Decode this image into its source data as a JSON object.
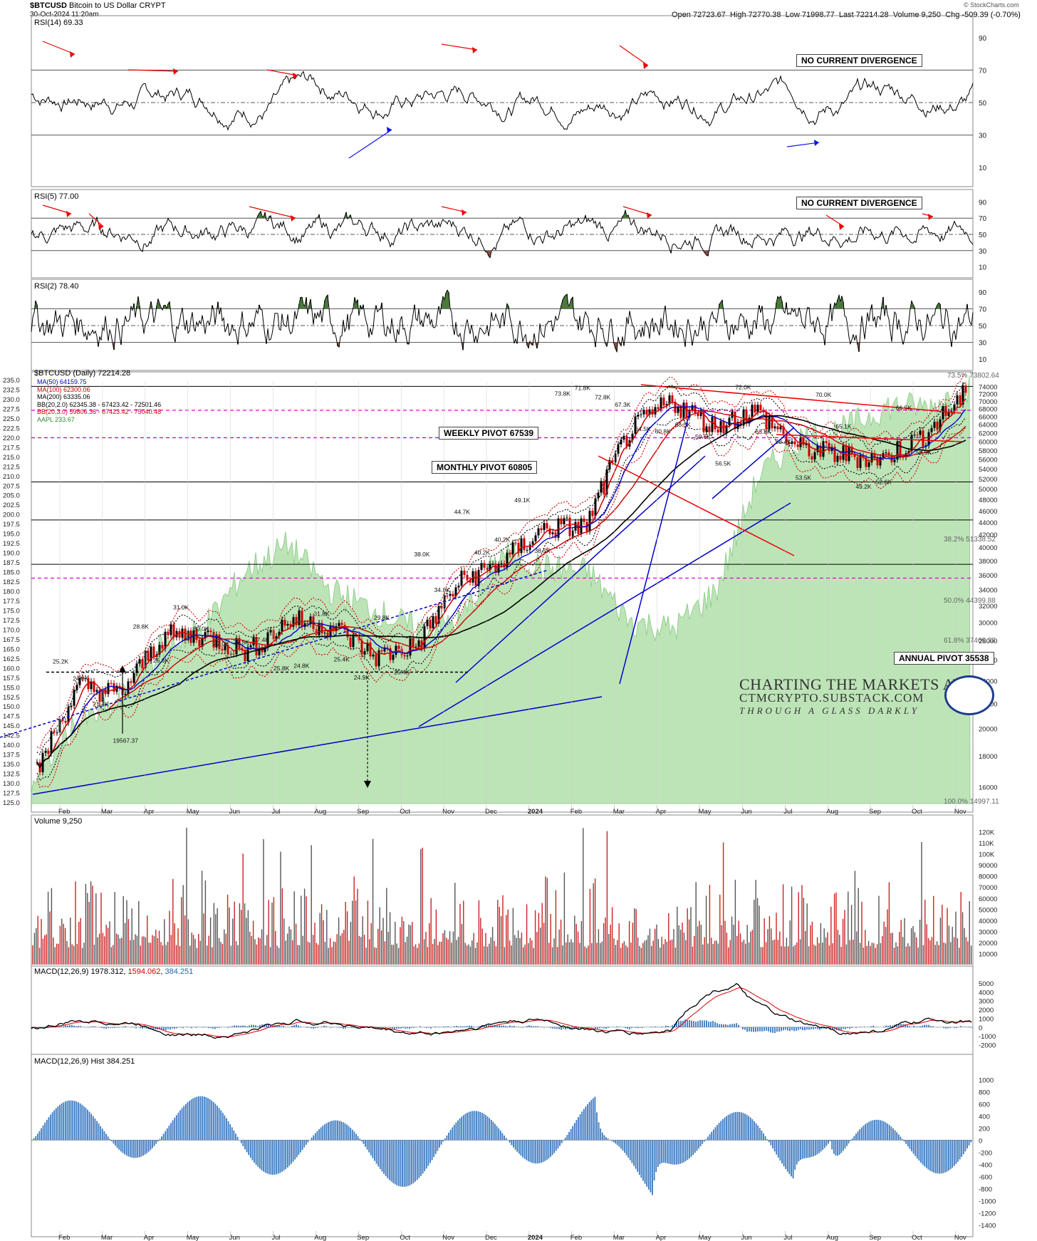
{
  "header": {
    "symbol": "$BTCUSD",
    "name": "Bitcoin to US Dollar",
    "exchange": "CRYPT",
    "date": "30-Oct-2024 11:20am",
    "open": "Open 72723.67",
    "high": "High 72770.38",
    "low": "Low 71998.77",
    "last": "Last 72214.28",
    "volume": "Volume 9,250",
    "chg": "Chg -509.39 (-0.70%)",
    "watermark": "© StockCharts.com"
  },
  "panels": {
    "rsi14": {
      "title": "RSI(14) 69.33",
      "note": "NO CURRENT DIVERGENCE",
      "ticks": [
        "90",
        "70",
        "50",
        "30",
        "10"
      ]
    },
    "rsi5": {
      "title": "RSI(5) 77.00",
      "note": "NO CURRENT DIVERGENCE",
      "ticks": [
        "90",
        "70",
        "50",
        "30",
        "10"
      ]
    },
    "rsi2": {
      "title": "RSI(2) 78.40",
      "ticks": [
        "90",
        "70",
        "50",
        "30",
        "10"
      ]
    },
    "volume": {
      "title": "Volume 9,250",
      "ticks": [
        "120K",
        "110K",
        "100K",
        "90000",
        "80000",
        "70000",
        "60000",
        "50000",
        "40000",
        "30000",
        "20000",
        "10000"
      ]
    },
    "macd": {
      "title": "MACD(12,26,9) 1978.312",
      "signal": "1594.062",
      "hist": "384.251",
      "ticks": [
        "5000",
        "4000",
        "3000",
        "2000",
        "1000",
        "0",
        "-1000",
        "-2000"
      ]
    },
    "macdhist": {
      "title": "MACD(12,26,9) Hist 384.251",
      "ticks": [
        "1000",
        "800",
        "600",
        "400",
        "200",
        "0",
        "-200",
        "-400",
        "-600",
        "-800",
        "-1000",
        "-1200",
        "-1400"
      ]
    }
  },
  "price_panel": {
    "title": "$BTCUSD (Daily) 72214.28",
    "legend": [
      {
        "text": "MA(50) 64159.75",
        "color": "#0000cc"
      },
      {
        "text": "MA(100) 62300.06",
        "color": "#cc0000"
      },
      {
        "text": "MA(200) 63335.06",
        "color": "#000000"
      },
      {
        "text": "BB(20,2.0) 62345.38 - 67423.42 - 72501.46",
        "color": "#000000"
      },
      {
        "text": "BB(20,3.0) 59806.36 - 67423.42 - 75040.48",
        "color": "#cc0000"
      },
      {
        "text": "AAPL 233.67",
        "color": "#2e8b2e"
      }
    ],
    "left_ticks": [
      "235.0",
      "232.5",
      "230.0",
      "227.5",
      "225.0",
      "222.5",
      "220.0",
      "217.5",
      "215.0",
      "212.5",
      "210.0",
      "207.5",
      "205.0",
      "202.5",
      "200.0",
      "197.5",
      "195.0",
      "192.5",
      "190.0",
      "187.5",
      "185.0",
      "182.5",
      "180.0",
      "177.5",
      "175.0",
      "172.5",
      "170.0",
      "167.5",
      "165.0",
      "162.5",
      "160.0",
      "157.5",
      "155.0",
      "152.5",
      "150.0",
      "147.5",
      "145.0",
      "142.5",
      "140.0",
      "137.5",
      "135.0",
      "132.5",
      "130.0",
      "127.5",
      "125.0"
    ],
    "right_ticks": [
      "74000",
      "72000",
      "70000",
      "68000",
      "66000",
      "64000",
      "62000",
      "60000",
      "58000",
      "56000",
      "54000",
      "52000",
      "50000",
      "48000",
      "46000",
      "44000",
      "42000",
      "40000",
      "38000",
      "36000",
      "34000",
      "32000",
      "30000",
      "28000",
      "26000",
      "24000",
      "22000",
      "20000",
      "18000",
      "16000"
    ],
    "pivots": [
      "WEEKLY PIVOT 67539",
      "MONTHLY PIVOT 60805",
      "ANNUAL PIVOT 35538"
    ],
    "fibs": [
      "73.5%",
      "38.2% 51338.52",
      "50.0% 44399.88",
      "61.8% 37460.38",
      "100.0% 14997.11"
    ],
    "top_fib": "73.5% 73802.64",
    "point_labels": [
      "25.2K",
      "24.8K",
      "21.4K",
      "19567.37",
      "28.8K",
      "26.6K",
      "31.0K",
      "30.0K",
      "27.0K",
      "28.5K",
      "27.4K",
      "25.8K",
      "24.8K",
      "31.8K",
      "25.4K",
      "24.9K",
      "29.8K",
      "25.4K",
      "38.0K",
      "34.8K",
      "44.7K",
      "40.2K",
      "40.2K",
      "49.1K",
      "38.5K",
      "73.8K",
      "71.8K",
      "72.8K",
      "67.3K",
      "64.5K",
      "60.8K",
      "65.5K",
      "59.6K",
      "56.5K",
      "72.0K",
      "63.8K",
      "58.4K",
      "53.5K",
      "70.0K",
      "65.1K",
      "49.2K",
      "52.6K",
      "66.5K",
      "58.9K"
    ]
  },
  "x_axis": [
    "Feb",
    "Mar",
    "Apr",
    "May",
    "Jun",
    "Jul",
    "Aug",
    "Sep",
    "Oct",
    "Nov",
    "Dec",
    "2024",
    "Feb",
    "Mar",
    "Apr",
    "May",
    "Jun",
    "Jul",
    "Aug",
    "Sep",
    "Oct",
    "Nov"
  ],
  "branding": {
    "line1": "CHARTING THE MARKETS AT",
    "line2": "CTMCRYPTO.SUBSTACK.COM",
    "line3": "THROUGH A GLASS DARKLY"
  },
  "chart_data": {
    "type": "line",
    "title": "$BTCUSD (Daily) 72214.28",
    "series": [
      {
        "name": "$BTCUSD",
        "x": [
          "Jan 2023",
          "Feb 2023",
          "Mar 2023",
          "Apr 2023",
          "May 2023",
          "Jun 2023",
          "Jul 2023",
          "Aug 2023",
          "Sep 2023",
          "Oct 2023",
          "Nov 2023",
          "Dec 2023",
          "Jan 2024",
          "Feb 2024",
          "Mar 2024",
          "Apr 2024",
          "May 2024",
          "Jun 2024",
          "Jul 2024",
          "Aug 2024",
          "Sep 2024",
          "Oct 2024",
          "Oct 30 2024"
        ],
        "values": [
          16900,
          23500,
          22800,
          28500,
          28500,
          26800,
          30300,
          29500,
          26300,
          27500,
          35000,
          37700,
          43000,
          43300,
          62000,
          70000,
          63500,
          67500,
          58400,
          57000,
          56000,
          61500,
          72214.28
        ]
      },
      {
        "name": "AAPL",
        "values": [
          130,
          145,
          150,
          165,
          170,
          185,
          192,
          180,
          175,
          170,
          172,
          190,
          186,
          185,
          172,
          170,
          180,
          210,
          220,
          222,
          228,
          228,
          233.67
        ]
      }
    ],
    "ylim_left": [
      125,
      235
    ],
    "ylim_right": [
      16000,
      74000
    ]
  }
}
